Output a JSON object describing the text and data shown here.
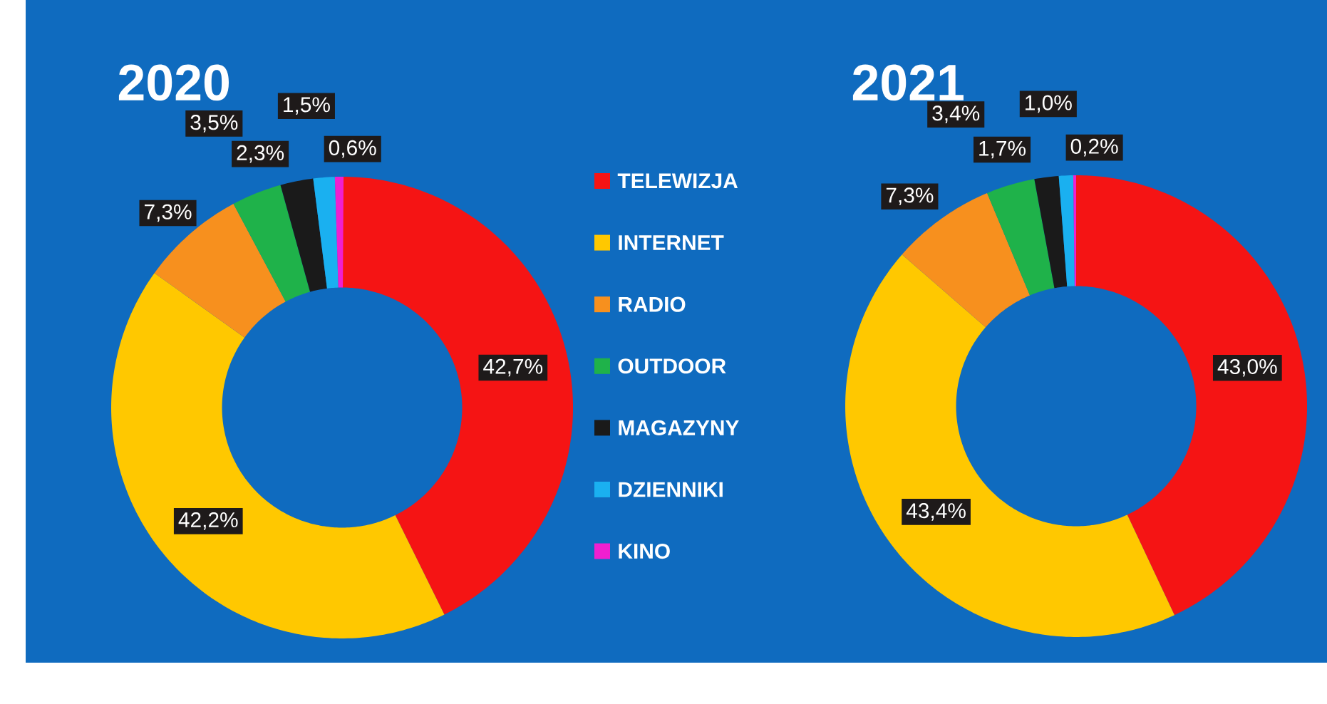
{
  "chart_data": [
    {
      "type": "donut",
      "title": "2020",
      "categories": [
        "TELEWIZJA",
        "INTERNET",
        "RADIO",
        "OUTDOOR",
        "MAGAZYNY",
        "DZIENNIKI",
        "KINO"
      ],
      "values": [
        42.7,
        42.2,
        7.3,
        3.5,
        2.3,
        1.5,
        0.6
      ],
      "colors": [
        "#f51414",
        "#ffc800",
        "#f7901e",
        "#1fb24a",
        "#1a1a1a",
        "#1ab0f0",
        "#f01fd0"
      ],
      "value_labels": [
        "42,7%",
        "42,2%",
        "7,3%",
        "3,5%",
        "2,3%",
        "1,5%",
        "0,6%"
      ],
      "legend": "right"
    },
    {
      "type": "donut",
      "title": "2021",
      "categories": [
        null,
        null,
        null,
        null,
        null,
        null,
        null
      ],
      "values": [
        43.0,
        43.4,
        7.3,
        3.4,
        1.7,
        1.0,
        0.2
      ],
      "colors": [
        "#f51414",
        "#ffc800",
        "#f7901e",
        "#1fb24a",
        "#1a1a1a",
        "#1ab0f0",
        "#f01fd0"
      ],
      "value_labels": [
        "43,0%",
        "43,4%",
        "7,3%",
        "3,4%",
        "1,7%",
        "1,0%",
        "0,2%"
      ]
    }
  ]
}
